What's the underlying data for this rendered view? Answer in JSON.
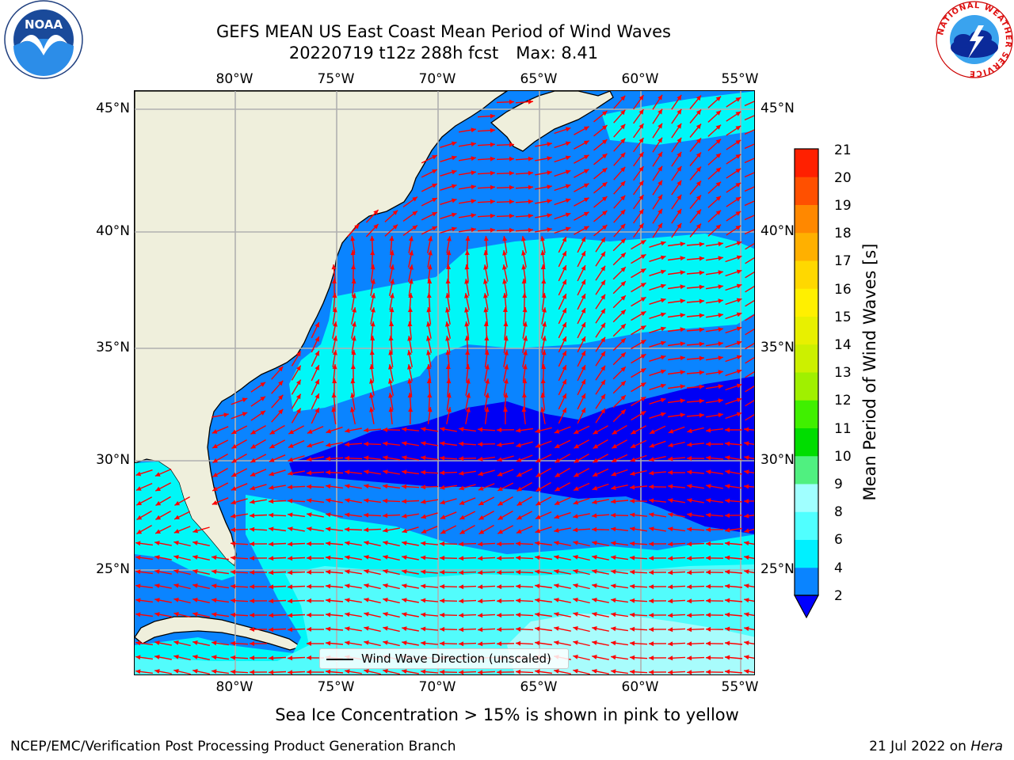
{
  "header": {
    "title_line1": "GEFS MEAN US East Coast Mean Period of Wind Waves",
    "title_line2_run": "20220719 t12z 288h fcst",
    "title_line2_max": "Max: 8.41"
  },
  "logos": {
    "noaa_text": "NOAA",
    "nws_ring_text": "NATIONAL WEATHER SERVICE"
  },
  "map": {
    "lon_labels": [
      "80°W",
      "75°W",
      "70°W",
      "65°W",
      "60°W",
      "55°W"
    ],
    "lat_labels": [
      "45°N",
      "40°N",
      "35°N",
      "30°N",
      "25°N"
    ],
    "legend_label": "Wind Wave Direction (unscaled)",
    "colors": {
      "land": "#efefdc",
      "band_2_4": "#0a84ff",
      "band_lt2": "#0000f5",
      "band_4_6": "#00f7f7",
      "band_6_8": "#52fcfc",
      "band_8_9": "#a8fcfc",
      "arrow": "#ff0000",
      "grid": "#b0b0b0"
    }
  },
  "colorbar": {
    "label": "Mean Period of Wind Waves [s]",
    "ticks": [
      "21",
      "20",
      "19",
      "18",
      "17",
      "16",
      "15",
      "14",
      "13",
      "12",
      "11",
      "10",
      "9",
      "8",
      "6",
      "4",
      "2"
    ],
    "under_color": "#0000ff",
    "segment_colors": [
      "#0a84ff",
      "#00f0ff",
      "#50ffff",
      "#a0ffff",
      "#50f080",
      "#00dd00",
      "#40f000",
      "#a0f000",
      "#ccf000",
      "#e8f000",
      "#fff000",
      "#ffd800",
      "#ffb000",
      "#ff8800",
      "#ff5000",
      "#ff2000",
      "#ff0000"
    ]
  },
  "notes": {
    "ice": "Sea Ice Concentration > 15% is shown in pink to yellow"
  },
  "footer": {
    "left": "NCEP/EMC/Verification Post Processing Product Generation Branch",
    "right_date": "21 Jul 2022 on",
    "right_host": "Hera"
  }
}
